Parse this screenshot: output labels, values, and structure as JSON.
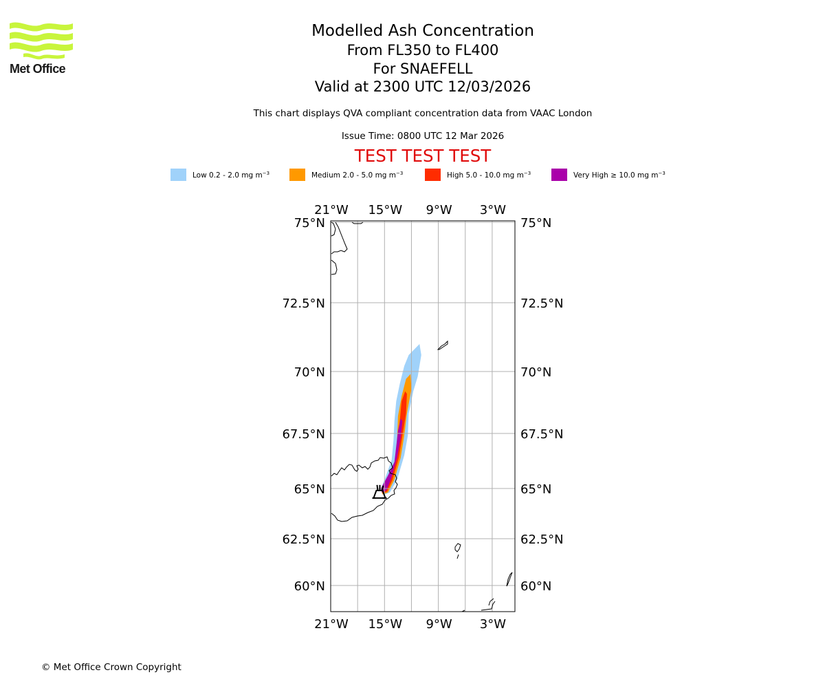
{
  "logo": {
    "text": "Met Office",
    "icon": "met-office-waves-logo",
    "color": "#c8f53c"
  },
  "header": {
    "title": "Modelled Ash Concentration",
    "levels": "From FL350 to FL400",
    "volcano": "For SNAEFELL",
    "valid": "Valid at 2300 UTC 12/03/2026",
    "description": "This chart displays QVA compliant concentration data from VAAC London",
    "issue_time": "Issue Time: 0800 UTC 12 Mar 2026",
    "test_banner": "TEST TEST TEST",
    "test_color": "#e00a0a"
  },
  "legend": [
    {
      "name": "Low",
      "range": "0.2 - 2.0",
      "unit": "mg m",
      "exp": "−3",
      "color": "#a0d2fa"
    },
    {
      "name": "Medium",
      "range": "2.0 - 5.0",
      "unit": "mg m",
      "exp": "−3",
      "color": "#ff9900"
    },
    {
      "name": "High",
      "range": "5.0 - 10.0",
      "unit": "mg m",
      "exp": "−3",
      "color": "#ff2c00"
    },
    {
      "name": "Very High",
      "range": "≥  10.0",
      "unit": "mg m",
      "exp": "−3",
      "color": "#aa00aa"
    }
  ],
  "chart_data": {
    "type": "map",
    "title": "Modelled Ash Concentration",
    "extent": {
      "lon": [
        -21,
        0
      ],
      "lat": [
        59,
        75
      ]
    },
    "x_ticks": [
      "21°W",
      "15°W",
      "9°W",
      "3°W"
    ],
    "x_tick_values": [
      -21,
      -15,
      -9,
      -3
    ],
    "x_grid_values": [
      -21,
      -18,
      -15,
      -12,
      -9,
      -6,
      -3
    ],
    "y_ticks": [
      "75°N",
      "72.5°N",
      "70°N",
      "67.5°N",
      "65°N",
      "62.5°N",
      "60°N"
    ],
    "y_tick_values": [
      75,
      72.5,
      70,
      67.5,
      65,
      62.5,
      60
    ],
    "grid": true,
    "volcano": {
      "name": "SNAEFELL",
      "lon": -15.6,
      "lat": 64.8,
      "symbol": "volcano-icon"
    },
    "ash_regions": [
      {
        "level": "Low",
        "color": "#a0d2fa",
        "polygon": [
          [
            -15.0,
            64.7
          ],
          [
            -14.4,
            64.8
          ],
          [
            -13.6,
            65.4
          ],
          [
            -12.8,
            66.5
          ],
          [
            -12.4,
            67.4
          ],
          [
            -12.3,
            68.3
          ],
          [
            -11.8,
            69.2
          ],
          [
            -11.3,
            69.8
          ],
          [
            -10.9,
            70.6
          ],
          [
            -11.1,
            71.0
          ],
          [
            -11.7,
            70.8
          ],
          [
            -12.3,
            70.6
          ],
          [
            -12.8,
            70.2
          ],
          [
            -13.3,
            69.5
          ],
          [
            -13.7,
            68.8
          ],
          [
            -13.9,
            68.0
          ],
          [
            -14.0,
            67.2
          ],
          [
            -14.2,
            66.3
          ],
          [
            -14.9,
            65.5
          ],
          [
            -15.4,
            65.0
          ]
        ]
      },
      {
        "level": "Medium",
        "color": "#ff9900",
        "polygon": [
          [
            -15.2,
            64.7
          ],
          [
            -14.6,
            64.8
          ],
          [
            -13.9,
            65.4
          ],
          [
            -13.2,
            66.4
          ],
          [
            -12.8,
            67.4
          ],
          [
            -12.5,
            68.3
          ],
          [
            -12.0,
            69.3
          ],
          [
            -12.1,
            69.9
          ],
          [
            -12.6,
            69.7
          ],
          [
            -13.1,
            69.0
          ],
          [
            -13.5,
            68.2
          ],
          [
            -13.6,
            67.2
          ],
          [
            -13.8,
            66.3
          ],
          [
            -14.6,
            65.5
          ],
          [
            -15.4,
            64.9
          ]
        ]
      },
      {
        "level": "High",
        "color": "#ff2c00",
        "polygon": [
          [
            -15.2,
            64.75
          ],
          [
            -14.7,
            64.85
          ],
          [
            -14.1,
            65.4
          ],
          [
            -13.4,
            66.4
          ],
          [
            -13.0,
            67.4
          ],
          [
            -12.6,
            68.3
          ],
          [
            -12.5,
            69.1
          ],
          [
            -12.7,
            69.2
          ],
          [
            -13.1,
            68.8
          ],
          [
            -13.3,
            68.0
          ],
          [
            -13.5,
            67.2
          ],
          [
            -13.7,
            66.3
          ],
          [
            -14.5,
            65.6
          ],
          [
            -15.3,
            64.95
          ]
        ]
      },
      {
        "level": "Very High",
        "color": "#aa00aa",
        "polygon": [
          [
            -15.3,
            64.8
          ],
          [
            -14.8,
            64.9
          ],
          [
            -14.3,
            65.4
          ],
          [
            -13.6,
            66.4
          ],
          [
            -13.2,
            67.3
          ],
          [
            -13.0,
            68.0
          ],
          [
            -13.2,
            68.1
          ],
          [
            -13.5,
            67.6
          ],
          [
            -13.7,
            66.9
          ],
          [
            -13.9,
            66.2
          ],
          [
            -14.6,
            65.6
          ],
          [
            -15.4,
            65.0
          ]
        ]
      }
    ]
  },
  "footer": {
    "copyright": "© Met Office Crown Copyright"
  }
}
